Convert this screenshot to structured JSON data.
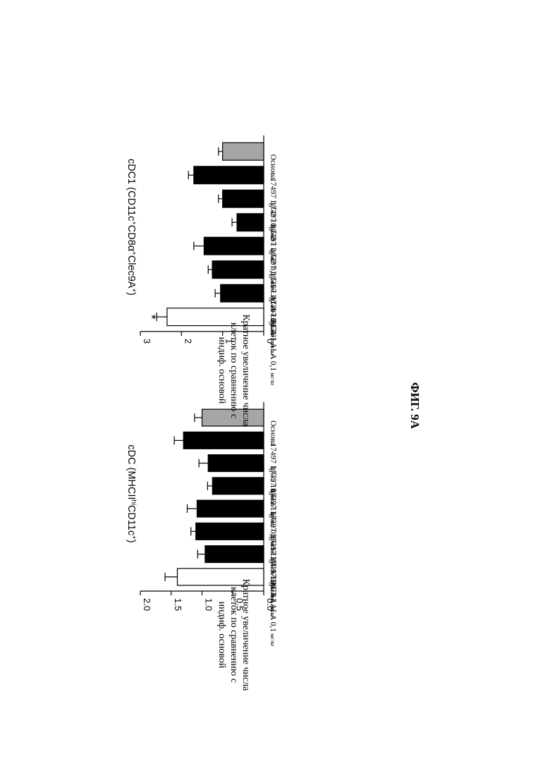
{
  "figure_label": "ФИГ. 9А",
  "chart_data": [
    {
      "type": "bar",
      "title": "cDC (MHCII",
      "title_sup": "hi",
      "title_tail": "CD11c",
      "title_sup2": "+",
      "title_close": ")",
      "ylabel_lines": [
        "Кратное увеличение числа",
        "клеток по сравнению с",
        "индиф. основой"
      ],
      "ylim": [
        0,
        2.0
      ],
      "yticks": [
        "0.0",
        "0.5",
        "1.0",
        "1.5",
        "2.0"
      ],
      "ytick_values": [
        0,
        0.5,
        1.0,
        1.5,
        2.0
      ],
      "categories": [
        {
          "main": "Основа",
          "dose": ""
        },
        {
          "main": "17497 IgG2 10",
          "dose": "мг/кг"
        },
        {
          "main": "17497 IgG2 1",
          "dose": "мг/кг"
        },
        {
          "main": "17497 IgG2 0,1",
          "dose": "мг/кг"
        },
        {
          "main": "17497 IgG1-LALA 10",
          "dose": "мг/кг"
        },
        {
          "main": "17497 IgG1-LALA 1",
          "dose": "мг/кг"
        },
        {
          "main": "17497 IgG1-LALA 0,1",
          "dose": "мг/кг"
        },
        {
          "main": "FLT3",
          "dose": ""
        }
      ],
      "values": [
        1.0,
        1.3,
        0.9,
        0.83,
        1.08,
        1.1,
        0.95,
        1.4
      ],
      "errors": [
        0.12,
        0.15,
        0.15,
        0.08,
        0.16,
        0.08,
        0.12,
        0.2
      ],
      "bar_colors": [
        "#a6a6a6",
        "#000000",
        "#000000",
        "#000000",
        "#000000",
        "#000000",
        "#000000",
        "#ffffff"
      ],
      "significance": [
        "",
        "",
        "",
        "",
        "",
        "",
        "",
        ""
      ]
    },
    {
      "type": "bar",
      "title": "cDC1 (CD11c",
      "title_sup": "+",
      "title_tail": "CD8α",
      "title_sup2": "+",
      "title_tail2": "Clec9A",
      "title_sup3": "+",
      "title_close": ")",
      "ylabel_lines": [
        "Кратное увеличение числа",
        "клеток по сравнению с",
        "индиф. основой"
      ],
      "ylim": [
        0,
        3
      ],
      "yticks": [
        "0",
        "1",
        "2",
        "3"
      ],
      "ytick_values": [
        0,
        1,
        2,
        3
      ],
      "categories": [
        {
          "main": "Основа",
          "dose": ""
        },
        {
          "main": "17497 IgG2 10",
          "dose": "мг/кг"
        },
        {
          "main": "17497 IgG2 1",
          "dose": "мг/кг"
        },
        {
          "main": "17497 IgG2 0,1",
          "dose": "мг/кг"
        },
        {
          "main": "17497 IgG1-LALA 10",
          "dose": "мг/кг"
        },
        {
          "main": "17497 IgG1-LALA 1",
          "dose": "мг/кг"
        },
        {
          "main": "17497 IgG1-LALA 0,1",
          "dose": "мг/кг"
        },
        {
          "main": "FLT3",
          "dose": ""
        }
      ],
      "values": [
        1.0,
        1.7,
        1.0,
        0.65,
        1.45,
        1.25,
        1.05,
        2.35
      ],
      "errors": [
        0.1,
        0.13,
        0.1,
        0.12,
        0.25,
        0.1,
        0.13,
        0.25
      ],
      "bar_colors": [
        "#a6a6a6",
        "#000000",
        "#000000",
        "#000000",
        "#000000",
        "#000000",
        "#000000",
        "#ffffff"
      ],
      "significance": [
        "",
        "",
        "",
        "",
        "",
        "",
        "",
        "*"
      ]
    }
  ]
}
